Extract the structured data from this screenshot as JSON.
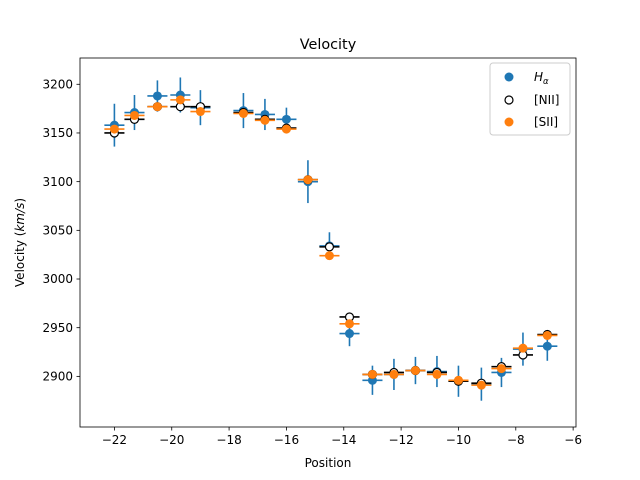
{
  "chart_data": {
    "type": "scatter",
    "title": "Velocity",
    "xlabel": "Position",
    "ylabel_prefix": "Velocity (",
    "ylabel_unit": "km/s",
    "ylabel_suffix": ")",
    "xlim": [
      -23.2,
      -5.9
    ],
    "ylim": [
      2848,
      3227
    ],
    "x_ticks": [
      -22,
      -20,
      -18,
      -16,
      -14,
      -12,
      -10,
      -8,
      -6
    ],
    "x_tick_labels": [
      "−22",
      "−20",
      "−18",
      "−16",
      "−14",
      "−12",
      "−10",
      "−8",
      "−6"
    ],
    "y_ticks": [
      2900,
      2950,
      3000,
      3050,
      3100,
      3150,
      3200
    ],
    "y_tick_labels": [
      "2900",
      "2950",
      "3000",
      "3050",
      "3100",
      "3150",
      "3200"
    ],
    "grid": false,
    "legend_position": "top-right",
    "legend": [
      {
        "label_base": "H",
        "label_sub": "α",
        "marker": "filled",
        "color": "#1f77b4"
      },
      {
        "label": "[NII]",
        "marker": "open",
        "color": "#000000"
      },
      {
        "label": "[SII]",
        "marker": "filled",
        "color": "#ff7f0e"
      }
    ],
    "series": [
      {
        "name": "Hα",
        "color": "#1f77b4",
        "marker": "filled",
        "x": [
          -22.0,
          -21.3,
          -20.5,
          -19.7,
          -19.0,
          -17.5,
          -16.75,
          -16.0,
          -15.25,
          -14.5,
          -13.8,
          -13.0,
          -12.25,
          -11.5,
          -10.75,
          -10.0,
          -9.2,
          -8.5,
          -7.75,
          -6.9
        ],
        "y": [
          3158,
          3171,
          3188,
          3189,
          3176,
          3173,
          3169,
          3164,
          3100,
          3034,
          2944,
          2896,
          2902,
          2906,
          2905,
          2895,
          2892,
          2904,
          2928,
          2931
        ],
        "xerr": [
          0.35,
          0.35,
          0.35,
          0.35,
          0.35,
          0.35,
          0.35,
          0.35,
          0.35,
          0.35,
          0.35,
          0.35,
          0.35,
          0.35,
          0.35,
          0.35,
          0.35,
          0.35,
          0.35,
          0.35
        ],
        "yerr": [
          22,
          18,
          16,
          18,
          18,
          18,
          16,
          12,
          22,
          14,
          13,
          15,
          16,
          14,
          16,
          16,
          17,
          15,
          17,
          15
        ]
      },
      {
        "name": "[NII]",
        "color": "#000000",
        "marker": "open",
        "x": [
          -22.0,
          -21.3,
          -20.5,
          -19.7,
          -19.0,
          -17.5,
          -16.75,
          -16.0,
          -15.25,
          -14.5,
          -13.8,
          -13.0,
          -12.25,
          -11.5,
          -10.75,
          -10.0,
          -9.2,
          -8.5,
          -7.75,
          -6.9
        ],
        "y": [
          3150,
          3164,
          3177,
          3177,
          3177,
          3171,
          3164,
          3155,
          3102,
          3033,
          2961,
          2902,
          2904,
          2906,
          2904,
          2895,
          2893,
          2910,
          2922,
          2943
        ],
        "xerr": [
          0.35,
          0.35,
          0.35,
          0.35,
          0.35,
          0.35,
          0.35,
          0.35,
          0.35,
          0.35,
          0.35,
          0.35,
          0.35,
          0.35,
          0.35,
          0.35,
          0.35,
          0.35,
          0.35,
          0.35
        ],
        "yerr": [
          0,
          0,
          0,
          0,
          0,
          0,
          0,
          0,
          0,
          0,
          0,
          0,
          0,
          0,
          0,
          0,
          0,
          0,
          0,
          0
        ]
      },
      {
        "name": "[SII]",
        "color": "#ff7f0e",
        "marker": "filled",
        "x": [
          -22.0,
          -21.3,
          -20.5,
          -19.7,
          -19.0,
          -17.5,
          -16.75,
          -16.0,
          -15.25,
          -14.5,
          -13.8,
          -13.0,
          -12.25,
          -11.5,
          -10.75,
          -10.0,
          -9.2,
          -8.5,
          -7.75,
          -6.9
        ],
        "y": [
          3154,
          3168,
          3177,
          3184,
          3172,
          3170,
          3163,
          3154,
          3102,
          3024,
          2954,
          2902,
          2902,
          2906,
          2902,
          2896,
          2891,
          2908,
          2929,
          2942
        ],
        "xerr": [
          0.35,
          0.35,
          0.35,
          0.35,
          0.35,
          0.35,
          0.35,
          0.35,
          0.35,
          0.35,
          0.35,
          0.35,
          0.35,
          0.35,
          0.35,
          0.35,
          0.35,
          0.35,
          0.35,
          0.35
        ],
        "yerr": [
          0,
          0,
          0,
          0,
          0,
          0,
          0,
          0,
          0,
          0,
          0,
          0,
          0,
          0,
          0,
          0,
          0,
          0,
          0,
          0
        ]
      }
    ]
  }
}
